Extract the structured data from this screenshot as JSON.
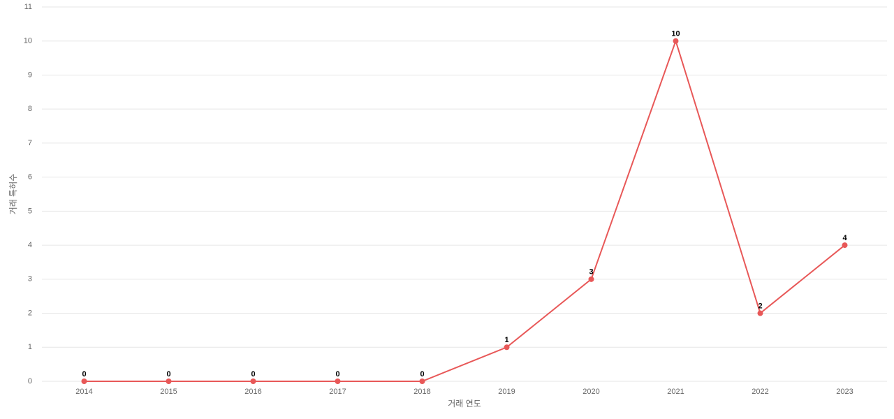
{
  "chart_data": {
    "type": "line",
    "x_label": "거래 연도",
    "y_label": "거래 특허수",
    "categories": [
      "2014",
      "2015",
      "2016",
      "2017",
      "2018",
      "2019",
      "2020",
      "2021",
      "2022",
      "2023"
    ],
    "series": [
      {
        "color": "#e85858",
        "values": [
          0,
          0,
          0,
          0,
          0,
          1,
          3,
          10,
          2,
          4
        ]
      }
    ],
    "ylim": [
      0,
      11
    ],
    "yticks": [
      0,
      1,
      2,
      3,
      4,
      5,
      6,
      7,
      8,
      9,
      10,
      11
    ],
    "grid": true,
    "data_labels": true
  }
}
